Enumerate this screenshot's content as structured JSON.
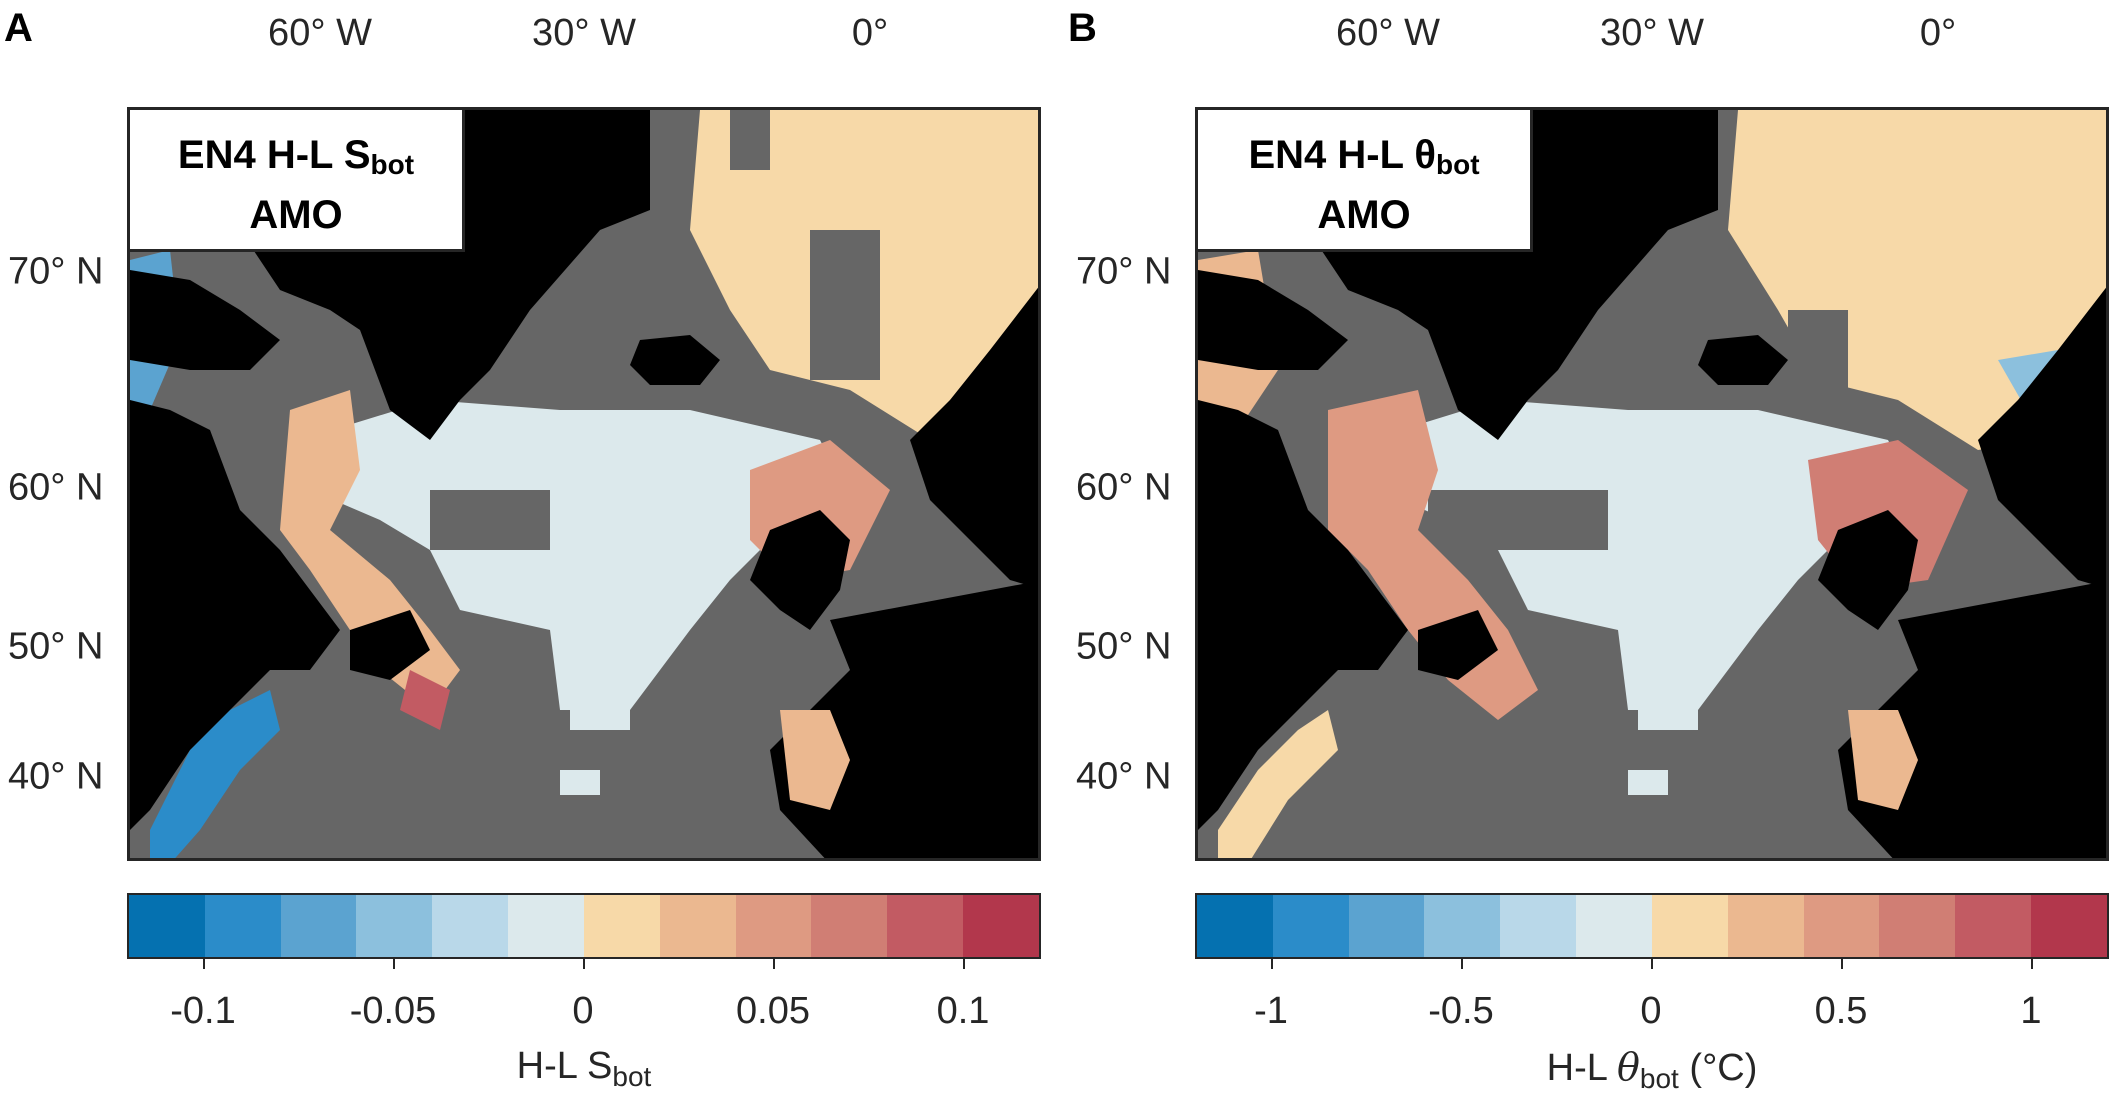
{
  "panels": [
    {
      "letter": "A",
      "title_line1": "EN4 H-L S",
      "title_sub": "bot",
      "title_line2": "AMO",
      "lon_labels": [
        "60° W",
        "30° W",
        "0°"
      ],
      "lat_labels": [
        "70° N",
        "60° N",
        "50° N",
        "40° N"
      ],
      "colorbar": {
        "label_main": "H-L S",
        "label_sub": "bot",
        "label_suffix": "",
        "ticks": [
          "-0.1",
          "-0.05",
          "0",
          "0.05",
          "0.1"
        ],
        "colors": [
          "#0571b0",
          "#2b8cc9",
          "#5ba3d0",
          "#8cc0dd",
          "#b9d8e9",
          "#dce9ec",
          "#f7d9a8",
          "#ebb890",
          "#de9a82",
          "#d07e74",
          "#c25b63",
          "#b2374c"
        ]
      }
    },
    {
      "letter": "B",
      "title_line1": "EN4 H-L θ",
      "title_sub": "bot",
      "title_line2": "AMO",
      "lon_labels": [
        "60° W",
        "30° W",
        "0°"
      ],
      "lat_labels": [
        "70° N",
        "60° N",
        "50° N",
        "40° N"
      ],
      "colorbar": {
        "label_main": "H-L ",
        "label_sym": "θ",
        "label_sub": "bot",
        "label_suffix": " (°C)",
        "ticks": [
          "-1",
          "-0.5",
          "0",
          "0.5",
          "1"
        ],
        "colors": [
          "#0571b0",
          "#2b8cc9",
          "#5ba3d0",
          "#8cc0dd",
          "#b9d8e9",
          "#dce9ec",
          "#f7d9a8",
          "#ebb890",
          "#de9a82",
          "#d07e74",
          "#c25b63",
          "#b2374c"
        ]
      }
    }
  ],
  "map_colors": {
    "land": "#000000",
    "no_data": "#666666",
    "light_blue": "#dce9ec",
    "peach": "#f7d9a8",
    "red": "#c25b63",
    "salmon": "#de9a82",
    "blue": "#2b8cc9",
    "grey_ice": "#9a9a9a"
  }
}
